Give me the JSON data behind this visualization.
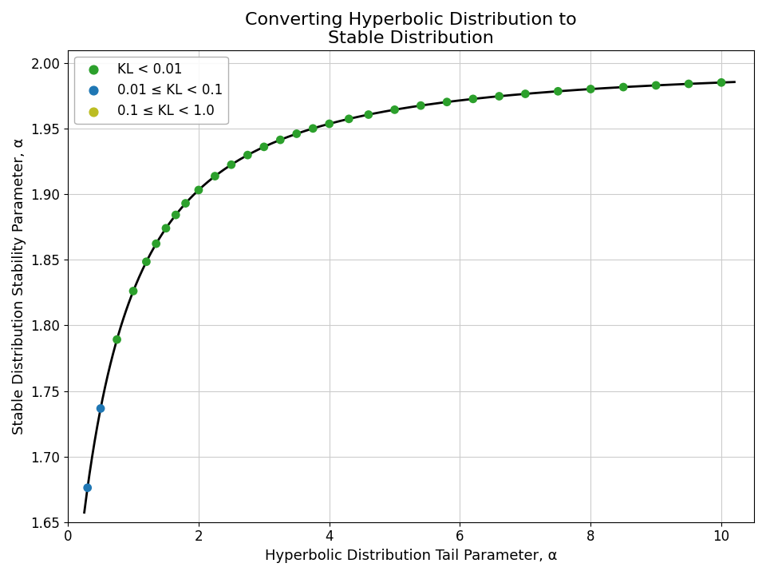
{
  "title": "Converting Hyperbolic Distribution to\nStable Distribution",
  "xlabel": "Hyperbolic Distribution Tail Parameter, α",
  "ylabel": "Stable Distribution Stability Parameter, α",
  "xlim": [
    0,
    10.5
  ],
  "ylim": [
    1.65,
    2.01
  ],
  "xticks": [
    0,
    2,
    4,
    6,
    8,
    10
  ],
  "yticks": [
    1.65,
    1.7,
    1.75,
    1.8,
    1.85,
    1.9,
    1.95,
    2.0
  ],
  "legend_labels": [
    "KL < 0.01",
    "0.01 ≤ KL < 0.1",
    "0.1 ≤ KL < 1.0"
  ],
  "legend_colors": [
    "#2ca02c",
    "#1f77b4",
    "#bcbd22"
  ],
  "curve_color": "black",
  "curve_linewidth": 2.0,
  "dot_size": 60,
  "background_color": "#ffffff",
  "grid_color": "#cccccc",
  "figsize": [
    9.6,
    7.2
  ],
  "dpi": 100,
  "title_fontsize": 16,
  "label_fontsize": 13,
  "tick_fontsize": 12,
  "legend_fontsize": 12,
  "curve_c": 0.473,
  "curve_d": 1.444,
  "scatter_x": [
    0.3,
    0.5,
    0.75,
    1.0,
    1.2,
    1.35,
    1.5,
    1.65,
    1.8,
    2.0,
    2.25,
    2.5,
    2.75,
    3.0,
    3.25,
    3.5,
    3.75,
    4.0,
    4.3,
    4.6,
    5.0,
    5.4,
    5.8,
    6.2,
    6.6,
    7.0,
    7.5,
    8.0,
    8.5,
    9.0,
    9.5,
    10.0
  ],
  "scatter_kl": [
    0.05,
    0.02,
    0.001,
    0.001,
    0.001,
    0.001,
    0.001,
    0.001,
    0.001,
    0.001,
    0.001,
    0.001,
    0.001,
    0.001,
    0.001,
    0.001,
    0.001,
    0.001,
    0.001,
    0.001,
    0.001,
    0.001,
    0.001,
    0.001,
    0.001,
    0.001,
    0.001,
    0.001,
    0.001,
    0.001,
    0.001,
    0.001
  ]
}
